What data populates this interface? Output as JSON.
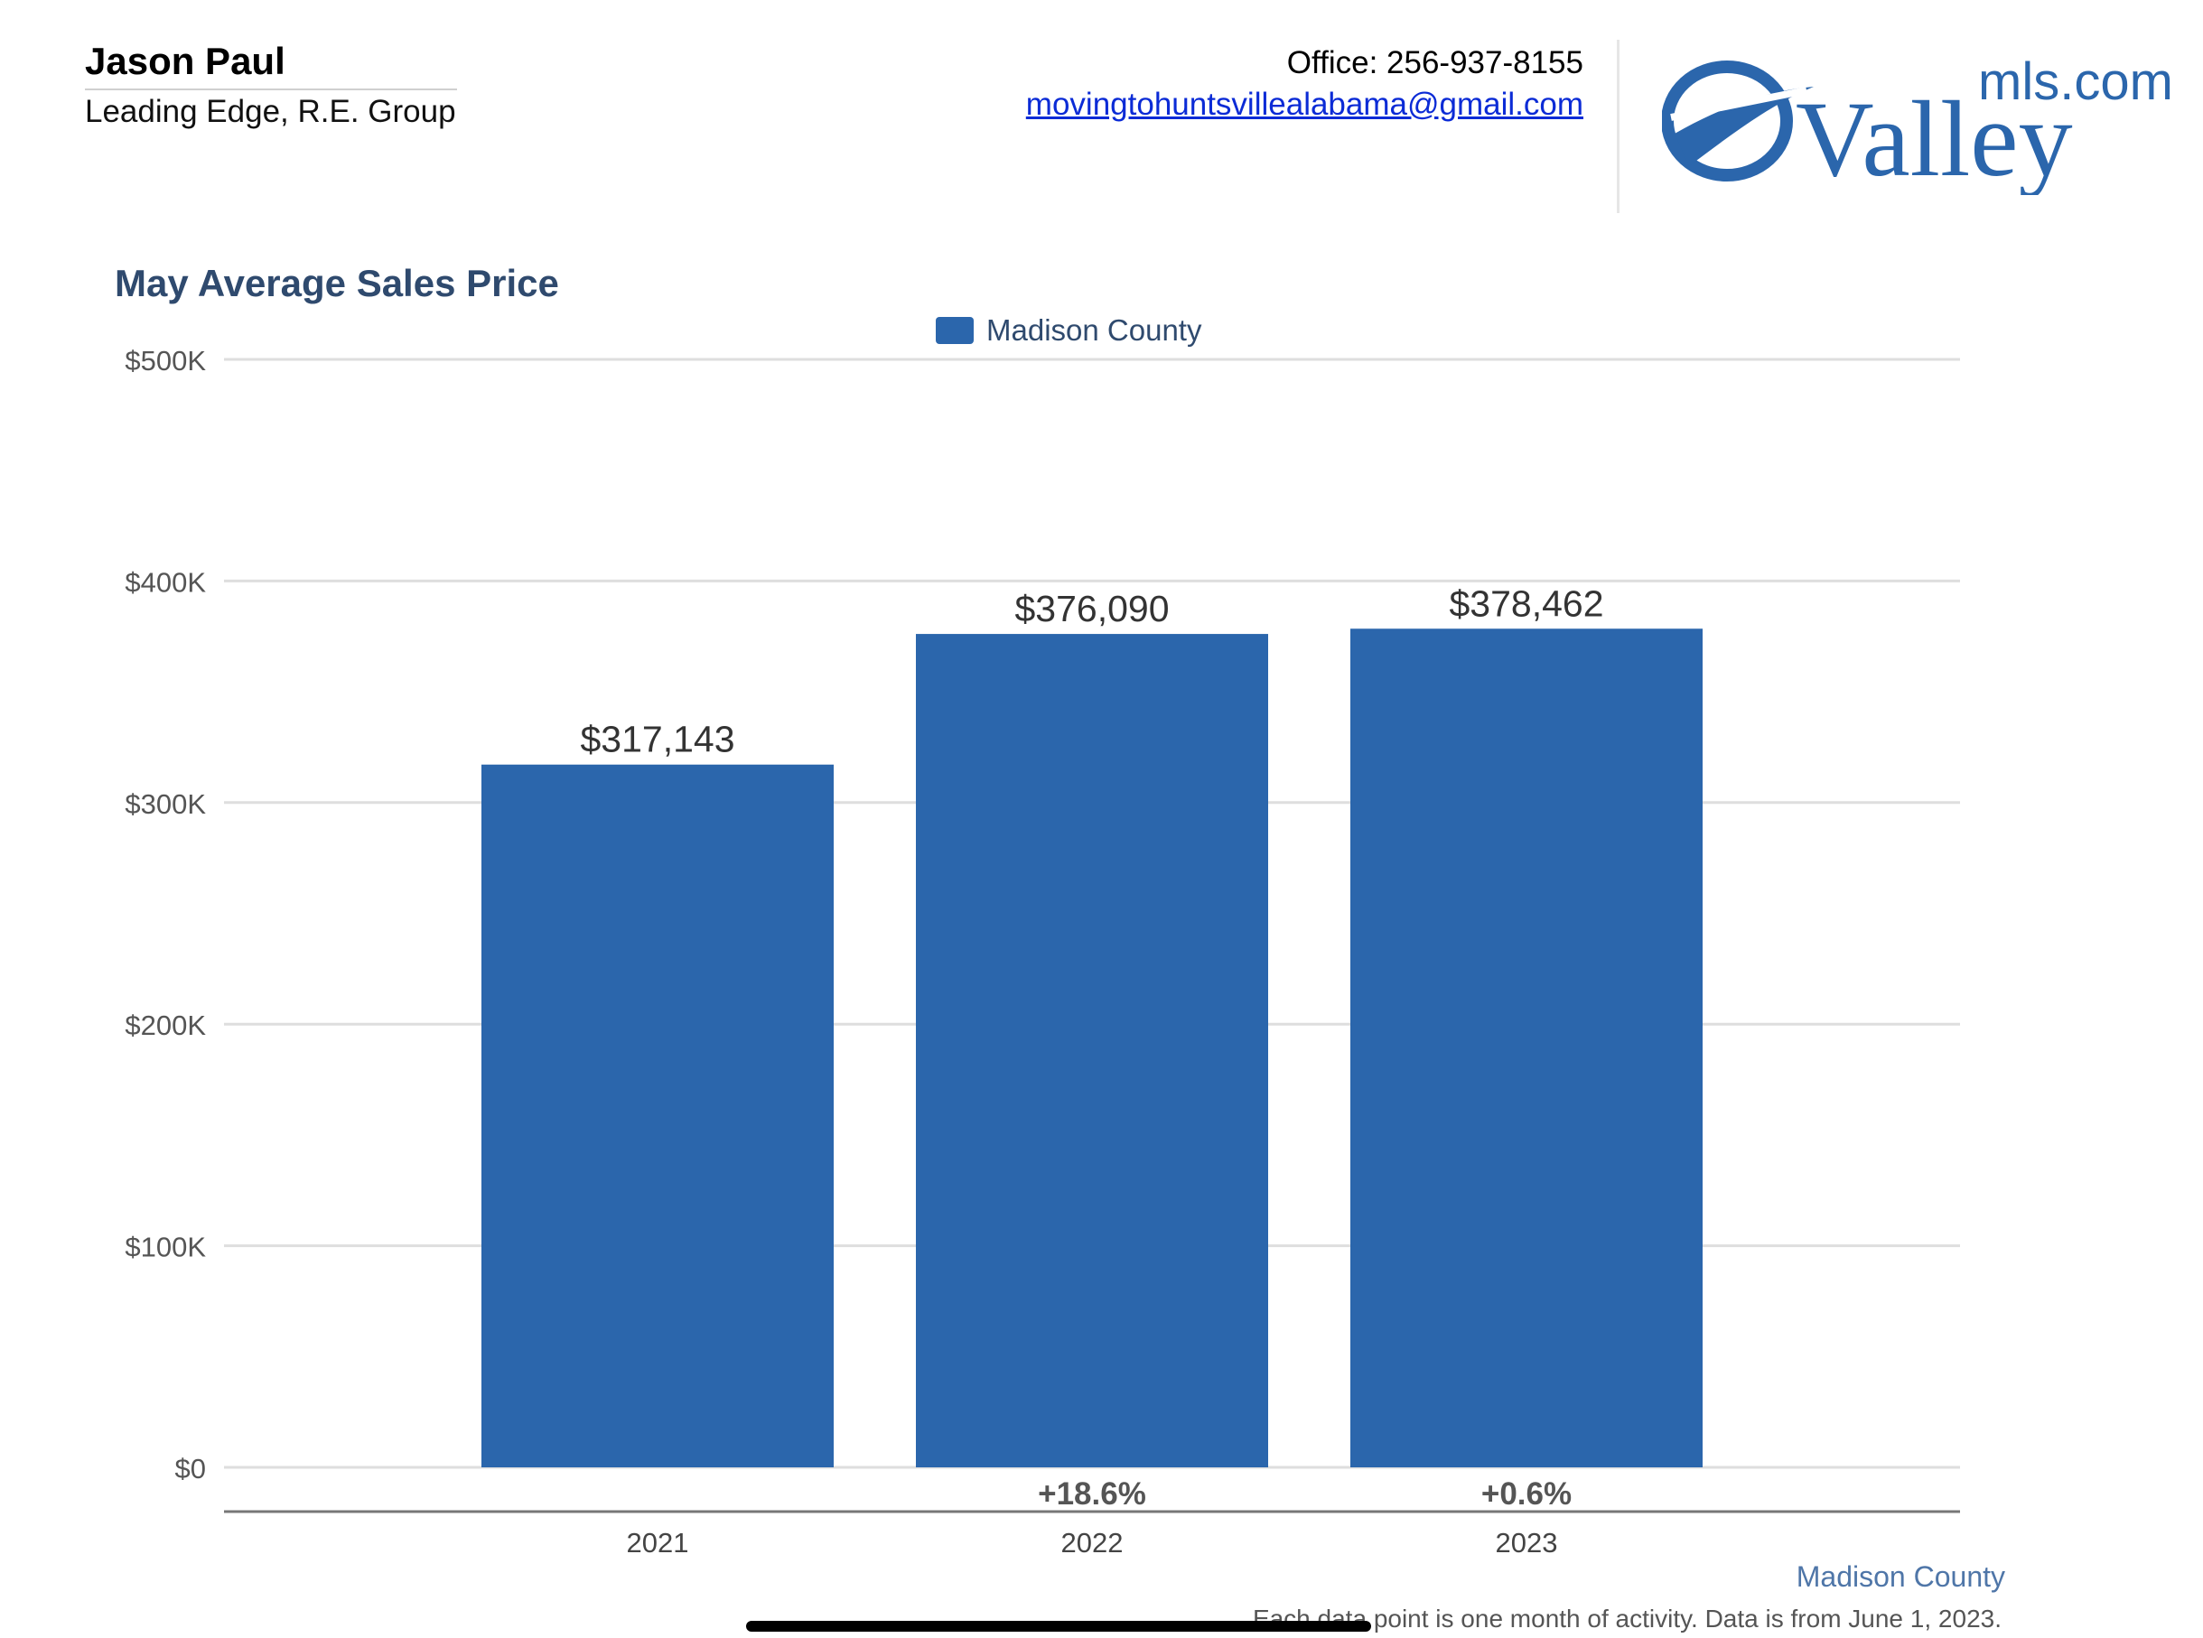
{
  "agent": {
    "name": "Jason Paul",
    "company": "Leading Edge, R.E. Group"
  },
  "contact": {
    "office": "Office: 256-937-8155",
    "email": "movingtohuntsvillealabama@gmail.com"
  },
  "logo": {
    "word": "Valley",
    "domain": "mls.com",
    "color": "#2b66ac"
  },
  "chart_data": {
    "type": "bar",
    "title": "May Average Sales Price",
    "xlabel": "",
    "ylabel": "",
    "ylim": [
      0,
      500000
    ],
    "yticks": [
      0,
      100000,
      200000,
      300000,
      400000,
      500000
    ],
    "ytick_labels": [
      "$0",
      "$100K",
      "$200K",
      "$300K",
      "$400K",
      "$500K"
    ],
    "grid": true,
    "legend_position": "top-center",
    "categories": [
      "2021",
      "2022",
      "2023"
    ],
    "series": [
      {
        "name": "Madison County",
        "color": "#2b66ac",
        "values": [
          317143,
          376090,
          378462
        ],
        "value_labels": [
          "$317,143",
          "$376,090",
          "$378,462"
        ]
      }
    ],
    "changes": [
      "",
      "+18.6%",
      "+0.6%"
    ]
  },
  "footer": {
    "series_label": "Madison County",
    "note": "Each data point is one month of activity. Data is from June 1, 2023."
  }
}
